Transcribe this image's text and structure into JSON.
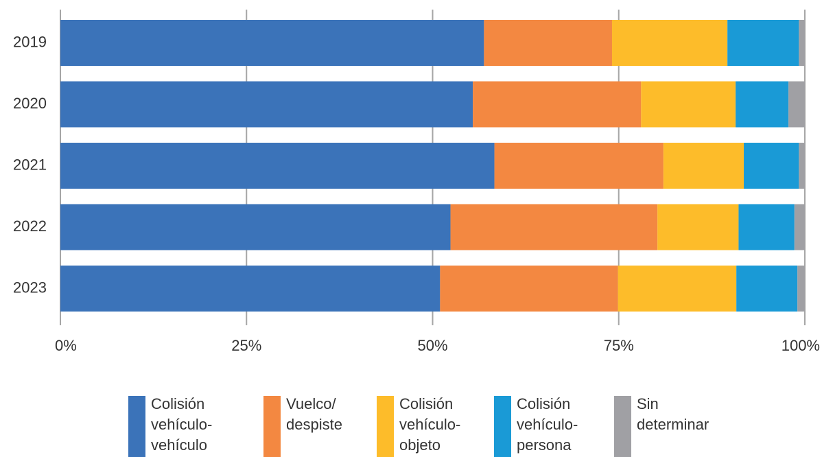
{
  "chart_data": {
    "type": "bar",
    "orientation": "horizontal",
    "stacked": true,
    "normalized": true,
    "categories": [
      "2019",
      "2020",
      "2021",
      "2022",
      "2023"
    ],
    "series": [
      {
        "name": "Colisión vehículo-vehículo",
        "name_lines": [
          "Colisión",
          "vehículo-",
          "vehículo"
        ],
        "color": "#3B73B9",
        "values": [
          56.9,
          55.4,
          58.3,
          52.4,
          51.0
        ]
      },
      {
        "name": "Vuelco/ despiste",
        "name_lines": [
          "Vuelco/",
          "despiste"
        ],
        "color": "#F38841",
        "values": [
          17.2,
          22.6,
          22.7,
          27.8,
          23.9
        ]
      },
      {
        "name": "Colisión vehículo-objeto",
        "name_lines": [
          "Colisión",
          "vehículo-",
          "objeto"
        ],
        "color": "#FDBC2A",
        "values": [
          15.5,
          12.7,
          10.8,
          10.9,
          15.9
        ]
      },
      {
        "name": "Colisión vehículo-persona",
        "name_lines": [
          "Colisión",
          "vehículo-",
          "persona"
        ],
        "color": "#1A9AD6",
        "values": [
          9.6,
          7.1,
          7.4,
          7.5,
          8.2
        ]
      },
      {
        "name": "Sin determinar",
        "name_lines": [
          "Sin",
          "determinar"
        ],
        "color": "#A0A0A4",
        "values": [
          0.8,
          2.2,
          0.8,
          1.4,
          1.0
        ]
      }
    ],
    "xlim": [
      0,
      100
    ],
    "x_ticks": [
      0,
      25,
      50,
      75,
      100
    ],
    "x_tick_labels": [
      "0%",
      "25%",
      "50%",
      "75%",
      "100%"
    ],
    "title": "",
    "xlabel": "",
    "ylabel": "",
    "grid": "vertical",
    "legend_position": "bottom"
  }
}
